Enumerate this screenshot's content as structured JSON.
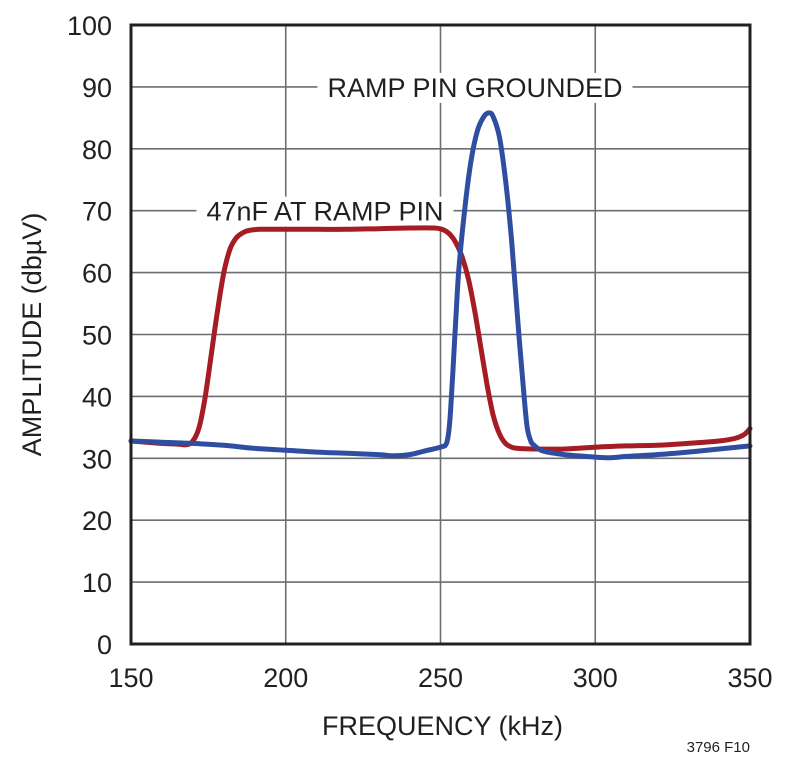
{
  "chart_data": {
    "type": "line",
    "title": "",
    "xlabel": "FREQUENCY (kHz)",
    "ylabel": "AMPLITUDE (dbµV)",
    "xlim": [
      150,
      350
    ],
    "ylim": [
      0,
      100
    ],
    "xticks": [
      150,
      200,
      250,
      300,
      350
    ],
    "yticks": [
      0,
      10,
      20,
      30,
      40,
      50,
      60,
      70,
      80,
      90,
      100
    ],
    "xtick_labels": [
      "150",
      "200",
      "250",
      "300",
      "350"
    ],
    "ytick_labels": [
      "0",
      "10",
      "20",
      "30",
      "40",
      "50",
      "60",
      "70",
      "80",
      "90",
      "100"
    ],
    "grid": true,
    "legend": "none (inline annotations)",
    "figure_id": "3796 F10",
    "series": [
      {
        "name": "47nF AT RAMP PIN",
        "color": "#a51c24",
        "x": [
          150,
          155,
          160,
          165,
          168,
          170,
          172,
          174,
          176,
          178,
          180,
          182,
          184,
          186,
          188,
          192,
          200,
          210,
          220,
          230,
          240,
          248,
          251,
          253,
          255,
          257,
          259,
          261,
          263,
          265,
          267,
          269,
          271,
          273,
          275,
          280,
          290,
          300,
          310,
          320,
          330,
          340,
          345,
          348,
          350
        ],
        "y": [
          32.8,
          32.6,
          32.4,
          32.3,
          32.2,
          32.8,
          35.0,
          40.0,
          47.0,
          54.0,
          60.0,
          63.8,
          65.6,
          66.4,
          66.8,
          67.0,
          67.0,
          67.0,
          67.0,
          67.1,
          67.2,
          67.2,
          66.9,
          66.2,
          64.8,
          62.5,
          59.0,
          54.0,
          48.0,
          42.0,
          37.0,
          34.0,
          32.4,
          31.8,
          31.6,
          31.5,
          31.5,
          31.8,
          32.0,
          32.1,
          32.4,
          32.8,
          33.2,
          33.8,
          34.8
        ]
      },
      {
        "name": "RAMP PIN GROUNDED",
        "color": "#2f4ea2",
        "x": [
          150,
          160,
          170,
          180,
          190,
          200,
          210,
          220,
          230,
          235,
          240,
          245,
          250,
          252,
          253,
          254,
          255,
          256,
          258,
          260,
          262,
          264,
          265.7,
          267,
          269,
          271,
          273,
          275,
          277,
          278,
          279,
          280,
          283,
          290,
          300,
          305,
          310,
          320,
          330,
          340,
          350
        ],
        "y": [
          32.8,
          32.6,
          32.4,
          32.1,
          31.6,
          31.3,
          31.0,
          30.8,
          30.6,
          30.4,
          30.6,
          31.2,
          31.8,
          32.5,
          36.0,
          44.0,
          53.0,
          61.0,
          71.0,
          78.5,
          83.0,
          85.2,
          85.8,
          85.2,
          82.0,
          75.0,
          65.0,
          52.0,
          40.0,
          35.0,
          33.0,
          32.2,
          31.2,
          30.6,
          30.2,
          30.1,
          30.3,
          30.6,
          31.0,
          31.5,
          32.0
        ]
      }
    ],
    "annotations": [
      {
        "text": "RAMP PIN GROUNDED",
        "at_x": 265,
        "at_y": 90
      },
      {
        "text": "47nF AT RAMP PIN",
        "at_x": 200,
        "at_y": 70
      }
    ]
  }
}
